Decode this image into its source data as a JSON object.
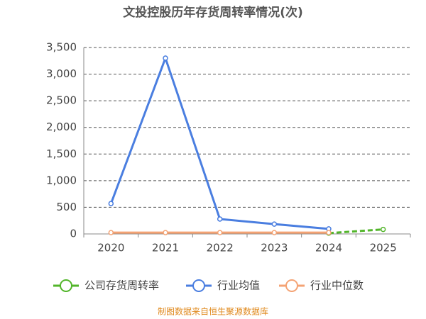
{
  "chart_data": {
    "type": "line",
    "title": "文投控股历年存货周转率情况(次)",
    "categories": [
      "2020",
      "2021",
      "2022",
      "2023",
      "2024",
      "2025"
    ],
    "series": [
      {
        "name": "公司存货周转率",
        "color": "#52b52a",
        "line_style": "dashed",
        "values": [
          null,
          null,
          null,
          null,
          15,
          85
        ]
      },
      {
        "name": "行业均值",
        "color": "#4a7ee0",
        "values": [
          570,
          3300,
          280,
          185,
          95,
          null
        ]
      },
      {
        "name": "行业中位数",
        "color": "#f4a374",
        "values": [
          25,
          25,
          25,
          25,
          25,
          null
        ]
      }
    ],
    "ylim": [
      0,
      3500
    ],
    "yticks": [
      0,
      500,
      {
        "value": 1000,
        "label": "1,000"
      },
      {
        "value": 1500,
        "label": "1,500"
      },
      {
        "value": 2000,
        "label": "2,000"
      },
      {
        "value": 2500,
        "label": "2,500"
      },
      {
        "value": 3000,
        "label": "3,000"
      },
      {
        "value": 3500,
        "label": "3,500"
      }
    ],
    "grid": true,
    "legend": "bottom",
    "source": "制图数据来自恒生聚源数据库"
  }
}
